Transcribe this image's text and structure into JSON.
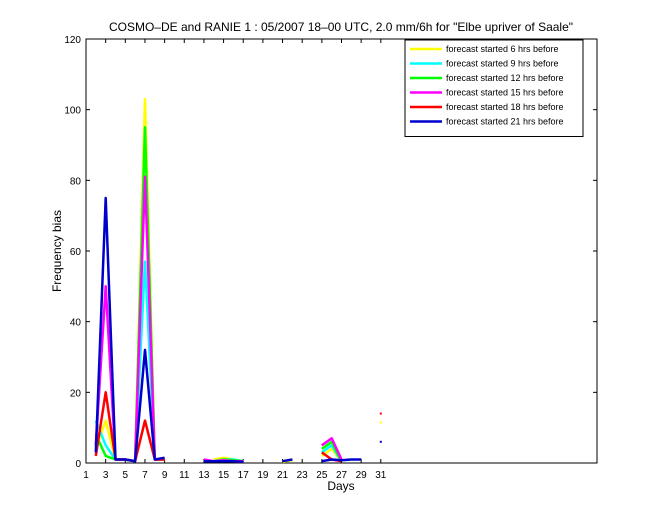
{
  "chart_data": {
    "type": "line",
    "title": "COSMO–DE and RANIE 1 : 05/2007 18–00 UTC, 2.0 mm/6h for \"Elbe upriver of Saale\"",
    "xlabel": "Days",
    "ylabel": "Frequency bias",
    "xlim": [
      1,
      53
    ],
    "ylim": [
      0,
      120
    ],
    "xticks": [
      1,
      3,
      5,
      7,
      9,
      11,
      13,
      15,
      17,
      19,
      21,
      23,
      25,
      27,
      29,
      31
    ],
    "yticks": [
      0,
      20,
      40,
      60,
      80,
      100,
      120
    ],
    "grid": false,
    "legend_position": "top-right",
    "series": [
      {
        "name": "forecast started 6 hrs before",
        "color": "#ffff00",
        "points": [
          [
            2,
            4
          ],
          [
            3,
            12
          ],
          [
            4,
            1
          ],
          [
            5,
            1
          ],
          [
            6,
            0.5
          ],
          [
            7,
            103
          ],
          [
            8,
            1
          ],
          [
            9,
            1
          ],
          [
            14,
            1
          ],
          [
            15,
            1.5
          ],
          [
            16,
            1
          ],
          [
            17,
            0.5
          ],
          [
            21,
            0.3
          ],
          [
            22,
            0.8
          ],
          [
            25,
            2
          ],
          [
            26,
            4
          ],
          [
            27,
            0.5
          ]
        ],
        "isolated": [
          [
            31,
            11.5
          ]
        ]
      },
      {
        "name": "forecast started 9 hrs before",
        "color": "#00ffff",
        "points": [
          [
            2,
            12
          ],
          [
            3,
            5
          ],
          [
            4,
            1
          ],
          [
            5,
            1
          ],
          [
            6,
            0.5
          ],
          [
            7,
            57
          ],
          [
            8,
            1
          ],
          [
            9,
            1
          ],
          [
            14,
            0.5
          ],
          [
            15,
            1
          ],
          [
            16,
            1
          ],
          [
            17,
            0.5
          ],
          [
            25,
            3
          ],
          [
            26,
            5
          ],
          [
            27,
            0.5
          ]
        ],
        "isolated": []
      },
      {
        "name": "forecast started 12 hrs before",
        "color": "#00ff00",
        "points": [
          [
            2,
            8
          ],
          [
            3,
            2
          ],
          [
            4,
            1
          ],
          [
            5,
            1
          ],
          [
            6,
            0.5
          ],
          [
            7,
            95
          ],
          [
            8,
            1
          ],
          [
            9,
            1
          ],
          [
            14,
            0.5
          ],
          [
            15,
            1
          ],
          [
            16,
            0.8
          ],
          [
            17,
            0.5
          ],
          [
            25,
            4
          ],
          [
            26,
            6
          ],
          [
            27,
            0.5
          ]
        ],
        "isolated": []
      },
      {
        "name": "forecast started 15 hrs before",
        "color": "#ff00ff",
        "points": [
          [
            2,
            5
          ],
          [
            3,
            50
          ],
          [
            4,
            1
          ],
          [
            5,
            1
          ],
          [
            6,
            0.5
          ],
          [
            7,
            81
          ],
          [
            8,
            1
          ],
          [
            9,
            1
          ],
          [
            13,
            1
          ],
          [
            14,
            0.5
          ],
          [
            15,
            0.8
          ],
          [
            16,
            0.5
          ],
          [
            17,
            0.5
          ],
          [
            25,
            5
          ],
          [
            26,
            7
          ],
          [
            27,
            1
          ]
        ],
        "isolated": []
      },
      {
        "name": "forecast started 18 hrs before",
        "color": "#ff0000",
        "points": [
          [
            2,
            2
          ],
          [
            3,
            20
          ],
          [
            4,
            1
          ],
          [
            5,
            1
          ],
          [
            6,
            0.5
          ],
          [
            7,
            12
          ],
          [
            8,
            1
          ],
          [
            9,
            1
          ],
          [
            13,
            0.5
          ],
          [
            14,
            0.5
          ],
          [
            15,
            0.5
          ],
          [
            16,
            0.5
          ],
          [
            17,
            0.3
          ],
          [
            25,
            3
          ],
          [
            26,
            1
          ],
          [
            27,
            0.5
          ]
        ],
        "isolated": [
          [
            31,
            14
          ]
        ]
      },
      {
        "name": "forecast started 21 hrs before",
        "color": "#0000cc",
        "points": [
          [
            2,
            3
          ],
          [
            3,
            75
          ],
          [
            4,
            1
          ],
          [
            5,
            1
          ],
          [
            6,
            0.5
          ],
          [
            7,
            32
          ],
          [
            8,
            1
          ],
          [
            9,
            1.5
          ],
          [
            13,
            0.5
          ],
          [
            14,
            0.5
          ],
          [
            15,
            0.5
          ],
          [
            16,
            0.5
          ],
          [
            17,
            0.3
          ],
          [
            21,
            0.5
          ],
          [
            22,
            1
          ],
          [
            25,
            0.5
          ],
          [
            26,
            1
          ],
          [
            27,
            0.8
          ],
          [
            28,
            1
          ],
          [
            29,
            1
          ]
        ],
        "isolated": [
          [
            31,
            6
          ]
        ]
      }
    ]
  }
}
